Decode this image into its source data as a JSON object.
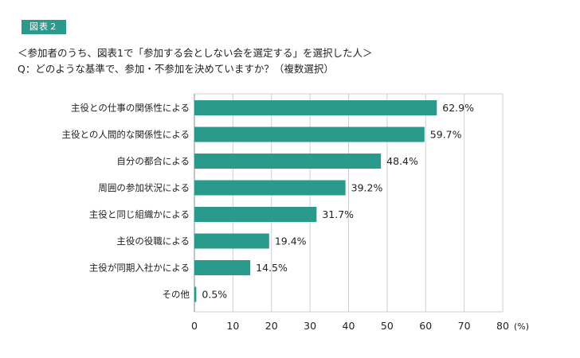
{
  "figure_label": "図表２",
  "title_line1": "＜参加者のうち、図表1で「参加する会としない会を選定する」を選択した人＞",
  "title_line2": "Q：どのような基準で、参加・不参加を決めていますか？（複数選択）",
  "chart_data": {
    "type": "bar",
    "orientation": "horizontal",
    "categories": [
      "主役との仕事の関係性による",
      "主役との人間的な関係性による",
      "自分の都合による",
      "周囲の参加状況による",
      "主役と同じ組織かによる",
      "主役の役職による",
      "主役が同期入社かによる",
      "その他"
    ],
    "values": [
      62.9,
      59.7,
      48.4,
      39.2,
      31.7,
      19.4,
      14.5,
      0.5
    ],
    "value_labels": [
      "62.9%",
      "59.7%",
      "48.4%",
      "39.2%",
      "31.7%",
      "19.4%",
      "14.5%",
      "0.5%"
    ],
    "xlim": [
      0,
      80
    ],
    "xticks": [
      0,
      10,
      20,
      30,
      40,
      50,
      60,
      70,
      80
    ],
    "xunit": "(%)",
    "bar_color": "#2a9a8c",
    "grid": true
  }
}
